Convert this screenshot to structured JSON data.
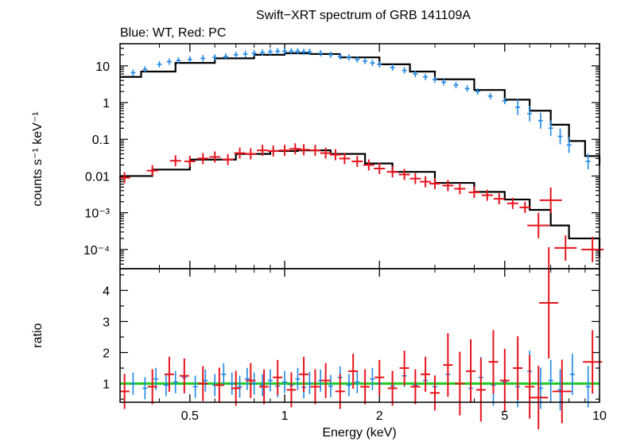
{
  "chart_data": {
    "type": "scatter",
    "title": "Swift−XRT spectrum of GRB 141109A",
    "subtitle": "Blue: WT, Red: PC",
    "xlabel": "Energy (keV)",
    "xscale": "log",
    "xlim": [
      0.3,
      10
    ],
    "x_ticks": [
      {
        "value": 0.5,
        "label": "0.5"
      },
      {
        "value": 1,
        "label": "1"
      },
      {
        "value": 2,
        "label": "2"
      },
      {
        "value": 5,
        "label": "5"
      },
      {
        "value": 10,
        "label": "10"
      }
    ],
    "top_panel": {
      "ylabel": "counts s⁻¹ keV⁻¹",
      "yscale": "log",
      "ylim": [
        3e-05,
        40
      ],
      "y_ticks": [
        {
          "value": 10,
          "label": "10"
        },
        {
          "value": 1,
          "label": "1"
        },
        {
          "value": 0.1,
          "label": "0.1"
        },
        {
          "value": 0.01,
          "label": "0.01"
        },
        {
          "value": 0.001,
          "label": "10⁻³"
        },
        {
          "value": 0.0001,
          "label": "10⁻⁴"
        }
      ],
      "series": [
        {
          "color": "#1e88e5",
          "points": [
            [
              0.33,
              6.5
            ],
            [
              0.36,
              8
            ],
            [
              0.4,
              11
            ],
            [
              0.43,
              13
            ],
            [
              0.46,
              14
            ],
            [
              0.5,
              15
            ],
            [
              0.55,
              16
            ],
            [
              0.6,
              17
            ],
            [
              0.65,
              18
            ],
            [
              0.7,
              20
            ],
            [
              0.75,
              21
            ],
            [
              0.8,
              22
            ],
            [
              0.85,
              23
            ],
            [
              0.9,
              24
            ],
            [
              0.95,
              25
            ],
            [
              1.0,
              25
            ],
            [
              1.05,
              25
            ],
            [
              1.1,
              25
            ],
            [
              1.15,
              24
            ],
            [
              1.2,
              24
            ],
            [
              1.3,
              22
            ],
            [
              1.4,
              20
            ],
            [
              1.5,
              18
            ],
            [
              1.6,
              17
            ],
            [
              1.7,
              15
            ],
            [
              1.8,
              13.5
            ],
            [
              1.9,
              12
            ],
            [
              2.0,
              11
            ],
            [
              2.2,
              9
            ],
            [
              2.4,
              7.5
            ],
            [
              2.6,
              6
            ],
            [
              2.8,
              5
            ],
            [
              3.0,
              4.2
            ],
            [
              3.2,
              3.6
            ],
            [
              3.5,
              3
            ],
            [
              3.8,
              2.4
            ],
            [
              4.1,
              2
            ],
            [
              4.5,
              1.5
            ],
            [
              5.0,
              1.1
            ],
            [
              5.5,
              0.75
            ],
            [
              6.0,
              0.5
            ],
            [
              6.5,
              0.32
            ],
            [
              7.0,
              0.2
            ],
            [
              7.5,
              0.12
            ],
            [
              8.0,
              0.07
            ],
            [
              9.2,
              0.025
            ]
          ]
        },
        {
          "color": "#e8141c",
          "points": [
            [
              0.31,
              0.009
            ],
            [
              0.38,
              0.014
            ],
            [
              0.45,
              0.026
            ],
            [
              0.5,
              0.025
            ],
            [
              0.55,
              0.03
            ],
            [
              0.6,
              0.033
            ],
            [
              0.66,
              0.028
            ],
            [
              0.72,
              0.042
            ],
            [
              0.78,
              0.04
            ],
            [
              0.85,
              0.05
            ],
            [
              0.92,
              0.048
            ],
            [
              1.0,
              0.05
            ],
            [
              1.08,
              0.055
            ],
            [
              1.15,
              0.052
            ],
            [
              1.25,
              0.05
            ],
            [
              1.35,
              0.042
            ],
            [
              1.45,
              0.038
            ],
            [
              1.55,
              0.03
            ],
            [
              1.7,
              0.025
            ],
            [
              1.85,
              0.02
            ],
            [
              2.0,
              0.016
            ],
            [
              2.2,
              0.013
            ],
            [
              2.4,
              0.011
            ],
            [
              2.6,
              0.0085
            ],
            [
              2.8,
              0.007
            ],
            [
              3.0,
              0.0062
            ],
            [
              3.3,
              0.0055
            ],
            [
              3.6,
              0.0045
            ],
            [
              4.0,
              0.0036
            ],
            [
              4.4,
              0.003
            ],
            [
              4.8,
              0.0024
            ],
            [
              5.3,
              0.0018
            ],
            [
              5.8,
              0.0014
            ],
            [
              6.4,
              0.00045
            ],
            [
              7.0,
              0.0022
            ],
            [
              7.8,
              0.00011
            ],
            [
              9.5,
              0.0001
            ]
          ]
        }
      ],
      "model": {
        "color": "#000000",
        "wt": [
          [
            0.3,
            5
          ],
          [
            0.35,
            7
          ],
          [
            0.45,
            12
          ],
          [
            0.6,
            16
          ],
          [
            0.8,
            20
          ],
          [
            1.0,
            22
          ],
          [
            1.2,
            21
          ],
          [
            1.5,
            17
          ],
          [
            2.0,
            11
          ],
          [
            2.5,
            7
          ],
          [
            3.0,
            4.3
          ],
          [
            4.0,
            2.2
          ],
          [
            5.0,
            1.2
          ],
          [
            6.0,
            0.6
          ],
          [
            7.0,
            0.25
          ],
          [
            8.0,
            0.09
          ],
          [
            9.0,
            0.035
          ],
          [
            10,
            0.02
          ]
        ],
        "pc": [
          [
            0.3,
            0.01
          ],
          [
            0.38,
            0.015
          ],
          [
            0.5,
            0.028
          ],
          [
            0.7,
            0.04
          ],
          [
            0.9,
            0.048
          ],
          [
            1.1,
            0.05
          ],
          [
            1.4,
            0.04
          ],
          [
            1.8,
            0.022
          ],
          [
            2.2,
            0.013
          ],
          [
            3.0,
            0.0065
          ],
          [
            4.0,
            0.0037
          ],
          [
            5.0,
            0.0023
          ],
          [
            6.0,
            0.0012
          ],
          [
            7.0,
            0.00045
          ],
          [
            8.0,
            0.0002
          ],
          [
            10,
            6e-05
          ]
        ]
      }
    },
    "bottom_panel": {
      "ylabel": "ratio",
      "yscale": "linear",
      "ylim": [
        0.4,
        4.7
      ],
      "y_ticks": [
        {
          "value": 1,
          "label": "1"
        },
        {
          "value": 2,
          "label": "2"
        },
        {
          "value": 3,
          "label": "3"
        },
        {
          "value": 4,
          "label": "4"
        }
      ],
      "reference_line": {
        "value": 1,
        "color": "#22cc22"
      },
      "series": [
        {
          "color": "#1e88e5",
          "points": [
            [
              0.33,
              1.0
            ],
            [
              0.36,
              0.85
            ],
            [
              0.39,
              1.15
            ],
            [
              0.42,
              0.95
            ],
            [
              0.45,
              1.05
            ],
            [
              0.48,
              1.2
            ],
            [
              0.52,
              0.9
            ],
            [
              0.56,
              1.1
            ],
            [
              0.6,
              0.95
            ],
            [
              0.64,
              1.3
            ],
            [
              0.68,
              1.0
            ],
            [
              0.72,
              0.9
            ],
            [
              0.76,
              1.15
            ],
            [
              0.8,
              1.0
            ],
            [
              0.85,
              0.95
            ],
            [
              0.9,
              1.1
            ],
            [
              0.95,
              0.92
            ],
            [
              1.0,
              1.05
            ],
            [
              1.05,
              0.95
            ],
            [
              1.1,
              1.15
            ],
            [
              1.15,
              0.88
            ],
            [
              1.2,
              1.02
            ],
            [
              1.3,
              1.1
            ],
            [
              1.4,
              0.92
            ],
            [
              1.5,
              1.2
            ],
            [
              1.6,
              0.95
            ],
            [
              1.7,
              1.05
            ],
            [
              1.8,
              0.9
            ],
            [
              1.9,
              1.15
            ],
            [
              2.0,
              1.0
            ],
            [
              2.2,
              0.92
            ],
            [
              2.4,
              1.25
            ],
            [
              2.6,
              0.95
            ],
            [
              2.8,
              1.1
            ],
            [
              3.0,
              0.9
            ],
            [
              3.3,
              1.3
            ],
            [
              3.6,
              1.0
            ],
            [
              3.9,
              0.85
            ],
            [
              4.2,
              1.2
            ],
            [
              4.6,
              0.95
            ],
            [
              5.0,
              1.05
            ],
            [
              5.5,
              0.9
            ],
            [
              6.0,
              1.4
            ],
            [
              6.5,
              0.85
            ],
            [
              7.0,
              1.1
            ],
            [
              7.5,
              0.8
            ],
            [
              8.2,
              1.3
            ],
            [
              9.2,
              0.9
            ]
          ]
        },
        {
          "color": "#e8141c",
          "points": [
            [
              0.31,
              0.75
            ],
            [
              0.38,
              0.9
            ],
            [
              0.43,
              1.3
            ],
            [
              0.48,
              1.25
            ],
            [
              0.55,
              1.0
            ],
            [
              0.62,
              0.95
            ],
            [
              0.7,
              0.85
            ],
            [
              0.78,
              1.1
            ],
            [
              0.86,
              0.9
            ],
            [
              0.95,
              1.2
            ],
            [
              1.05,
              0.8
            ],
            [
              1.15,
              1.3
            ],
            [
              1.25,
              0.9
            ],
            [
              1.35,
              1.1
            ],
            [
              1.5,
              0.75
            ],
            [
              1.65,
              1.4
            ],
            [
              1.8,
              0.9
            ],
            [
              2.0,
              1.2
            ],
            [
              2.2,
              0.85
            ],
            [
              2.4,
              1.5
            ],
            [
              2.6,
              0.9
            ],
            [
              2.8,
              1.3
            ],
            [
              3.0,
              0.7
            ],
            [
              3.3,
              1.6
            ],
            [
              3.6,
              1.0
            ],
            [
              3.9,
              1.4
            ],
            [
              4.2,
              0.8
            ],
            [
              4.6,
              1.7
            ],
            [
              5.0,
              1.1
            ],
            [
              5.5,
              1.5
            ],
            [
              6.0,
              0.9
            ],
            [
              6.4,
              0.55
            ],
            [
              6.9,
              3.6
            ],
            [
              7.6,
              0.75
            ],
            [
              9.5,
              1.7
            ]
          ]
        }
      ]
    }
  }
}
